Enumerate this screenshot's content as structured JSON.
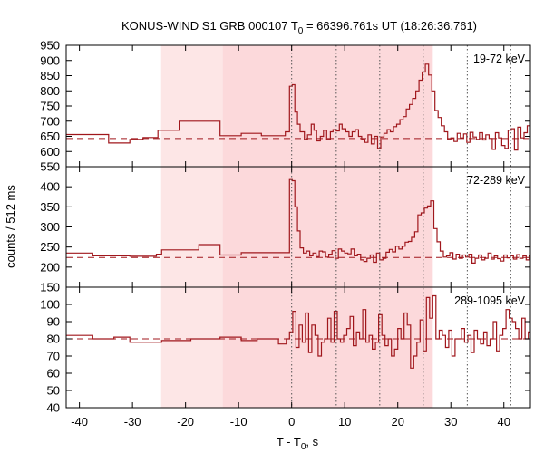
{
  "chart_data": {
    "type": "line",
    "title_prefix": "KONUS-WIND S1 GRB 000107 T",
    "title_sub": "0",
    "title_suffix": " = 66396.761s UT (18:26:36.761)",
    "ylabel": "counts / 512 ms",
    "xlabel_prefix": "T - T",
    "xlabel_sub": "0",
    "xlabel_suffix": ", s",
    "xlim": [
      -42.5,
      45
    ],
    "x_ticks": [
      "-40",
      "-30",
      "-20",
      "-10",
      "0",
      "10",
      "20",
      "30",
      "40"
    ],
    "x_tick_values": [
      -40,
      -30,
      -20,
      -10,
      0,
      10,
      20,
      30,
      40
    ],
    "shaded_regions": [
      {
        "from": -24.6,
        "to": -13,
        "color": "#fde6e6"
      },
      {
        "from": -13,
        "to": 26.6,
        "color": "#fcd9db"
      }
    ],
    "vertical_markers": [
      0,
      8.4,
      16.6,
      24.8,
      33.1,
      41.3
    ],
    "line_color": "#a0171c",
    "background_line_color": "#a0171c",
    "panels": [
      {
        "label": "19-72 keV",
        "ylim": [
          550,
          950
        ],
        "y_ticks": [
          "550",
          "600",
          "650",
          "700",
          "750",
          "800",
          "850",
          "900",
          "950"
        ],
        "y_tick_values": [
          550,
          600,
          650,
          700,
          750,
          800,
          850,
          900,
          950
        ],
        "background_level": 643,
        "steps": [
          [
            -42.5,
            656
          ],
          [
            -34.5,
            628
          ],
          [
            -30.5,
            640
          ],
          [
            -28,
            646
          ],
          [
            -25.2,
            670
          ],
          [
            -21.2,
            700
          ],
          [
            -13.5,
            652
          ],
          [
            -9.5,
            660
          ],
          [
            -5.7,
            652
          ],
          [
            -1.2,
            665
          ],
          [
            -0.4,
            815
          ],
          [
            0.1,
            820
          ],
          [
            0.6,
            730
          ],
          [
            1.1,
            690
          ],
          [
            1.6,
            665
          ],
          [
            2.4,
            640
          ],
          [
            3,
            655
          ],
          [
            3.7,
            690
          ],
          [
            4.2,
            670
          ],
          [
            4.7,
            635
          ],
          [
            5.4,
            650
          ],
          [
            6,
            670
          ],
          [
            6.6,
            640
          ],
          [
            7.3,
            665
          ],
          [
            7.8,
            672
          ],
          [
            8.4,
            668
          ],
          [
            9,
            690
          ],
          [
            9.5,
            675
          ],
          [
            10.2,
            665
          ],
          [
            10.8,
            650
          ],
          [
            11.4,
            665
          ],
          [
            12,
            672
          ],
          [
            12.6,
            650
          ],
          [
            13.2,
            640
          ],
          [
            13.8,
            630
          ],
          [
            14.4,
            655
          ],
          [
            15,
            625
          ],
          [
            15.6,
            650
          ],
          [
            16.2,
            610
          ],
          [
            16.8,
            648
          ],
          [
            17.4,
            660
          ],
          [
            18,
            672
          ],
          [
            18.6,
            665
          ],
          [
            19.2,
            682
          ],
          [
            19.8,
            690
          ],
          [
            20.4,
            705
          ],
          [
            21,
            715
          ],
          [
            21.6,
            740
          ],
          [
            22.2,
            755
          ],
          [
            22.8,
            775
          ],
          [
            23.4,
            800
          ],
          [
            24,
            835
          ],
          [
            24.6,
            862
          ],
          [
            25.2,
            888
          ],
          [
            25.8,
            852
          ],
          [
            26.4,
            800
          ],
          [
            27,
            735
          ],
          [
            27.6,
            712
          ],
          [
            28.2,
            685
          ],
          [
            28.8,
            665
          ],
          [
            29.4,
            640
          ],
          [
            30,
            645
          ],
          [
            30.6,
            633
          ],
          [
            31.2,
            660
          ],
          [
            31.8,
            645
          ],
          [
            32.4,
            658
          ],
          [
            33,
            630
          ],
          [
            33.6,
            663
          ],
          [
            34.2,
            648
          ],
          [
            34.8,
            640
          ],
          [
            35.4,
            662
          ],
          [
            36,
            638
          ],
          [
            36.6,
            655
          ],
          [
            37.2,
            643
          ],
          [
            37.8,
            607
          ],
          [
            38.4,
            662
          ],
          [
            39,
            645
          ],
          [
            39.6,
            620
          ],
          [
            40.2,
            610
          ],
          [
            40.8,
            670
          ],
          [
            41.4,
            675
          ],
          [
            42,
            605
          ],
          [
            42.6,
            680
          ],
          [
            43.2,
            645
          ],
          [
            43.8,
            662
          ],
          [
            44.4,
            685
          ],
          [
            45,
            685
          ]
        ]
      },
      {
        "label": "72-289 keV",
        "ylim": [
          150,
          450
        ],
        "y_ticks": [
          "150",
          "200",
          "250",
          "300",
          "350",
          "400"
        ],
        "y_tick_values": [
          150,
          200,
          250,
          300,
          350,
          400
        ],
        "background_level": 224,
        "steps": [
          [
            -42.5,
            235
          ],
          [
            -37.5,
            228
          ],
          [
            -30.5,
            227
          ],
          [
            -25.5,
            232
          ],
          [
            -24.5,
            243
          ],
          [
            -17.5,
            256
          ],
          [
            -13.5,
            230
          ],
          [
            -9.5,
            236
          ],
          [
            -1.5,
            236
          ],
          [
            -0.4,
            418
          ],
          [
            0.1,
            415
          ],
          [
            0.6,
            350
          ],
          [
            1.1,
            290
          ],
          [
            1.6,
            248
          ],
          [
            2.2,
            235
          ],
          [
            2.8,
            240
          ],
          [
            3.4,
            228
          ],
          [
            4,
            235
          ],
          [
            4.6,
            226
          ],
          [
            5.2,
            240
          ],
          [
            5.8,
            238
          ],
          [
            6.4,
            225
          ],
          [
            7,
            232
          ],
          [
            7.6,
            241
          ],
          [
            8.2,
            222
          ],
          [
            8.8,
            245
          ],
          [
            9.4,
            240
          ],
          [
            10,
            235
          ],
          [
            10.6,
            233
          ],
          [
            11.2,
            245
          ],
          [
            11.8,
            228
          ],
          [
            12.4,
            232
          ],
          [
            13,
            218
          ],
          [
            13.6,
            214
          ],
          [
            14.2,
            222
          ],
          [
            14.8,
            230
          ],
          [
            15.4,
            212
          ],
          [
            16,
            235
          ],
          [
            16.6,
            218
          ],
          [
            17.2,
            222
          ],
          [
            17.8,
            237
          ],
          [
            18.4,
            244
          ],
          [
            19,
            238
          ],
          [
            19.6,
            252
          ],
          [
            20.2,
            245
          ],
          [
            20.8,
            252
          ],
          [
            21.4,
            262
          ],
          [
            22,
            264
          ],
          [
            22.6,
            274
          ],
          [
            23.2,
            288
          ],
          [
            23.8,
            330
          ],
          [
            24.4,
            335
          ],
          [
            25,
            347
          ],
          [
            25.6,
            352
          ],
          [
            26.2,
            365
          ],
          [
            26.8,
            296
          ],
          [
            27.4,
            263
          ],
          [
            28,
            240
          ],
          [
            28.6,
            225
          ],
          [
            29.2,
            228
          ],
          [
            29.8,
            236
          ],
          [
            30.4,
            220
          ],
          [
            31,
            232
          ],
          [
            31.6,
            222
          ],
          [
            32.2,
            230
          ],
          [
            32.8,
            225
          ],
          [
            33.4,
            232
          ],
          [
            34,
            210
          ],
          [
            34.6,
            222
          ],
          [
            35.2,
            230
          ],
          [
            35.8,
            218
          ],
          [
            36.4,
            222
          ],
          [
            37,
            235
          ],
          [
            37.6,
            220
          ],
          [
            38.2,
            228
          ],
          [
            38.8,
            221
          ],
          [
            39.4,
            215
          ],
          [
            40,
            230
          ],
          [
            40.6,
            223
          ],
          [
            41.2,
            228
          ],
          [
            41.8,
            220
          ],
          [
            42.4,
            231
          ],
          [
            43,
            222
          ],
          [
            43.6,
            228
          ],
          [
            44.2,
            218
          ],
          [
            44.8,
            228
          ],
          [
            45,
            228
          ]
        ]
      },
      {
        "label": "289-1095 keV",
        "ylim": [
          40,
          110
        ],
        "y_ticks": [
          "40",
          "50",
          "60",
          "70",
          "80",
          "90",
          "100"
        ],
        "y_tick_values": [
          40,
          50,
          60,
          70,
          80,
          90,
          100
        ],
        "background_level": 80,
        "steps": [
          [
            -42.5,
            82
          ],
          [
            -37.5,
            80
          ],
          [
            -33.5,
            81
          ],
          [
            -30.5,
            78
          ],
          [
            -24.5,
            79
          ],
          [
            -19,
            80
          ],
          [
            -13.5,
            81
          ],
          [
            -9.5,
            79
          ],
          [
            -6.5,
            80
          ],
          [
            -2.5,
            77
          ],
          [
            -1,
            80
          ],
          [
            -0.4,
            84
          ],
          [
            0.2,
            96
          ],
          [
            0.8,
            75
          ],
          [
            1.4,
            88
          ],
          [
            2,
            78
          ],
          [
            2.6,
            95
          ],
          [
            3.2,
            72
          ],
          [
            3.8,
            88
          ],
          [
            4.4,
            82
          ],
          [
            5,
            70
          ],
          [
            5.6,
            78
          ],
          [
            6.2,
            80
          ],
          [
            6.8,
            92
          ],
          [
            7.4,
            78
          ],
          [
            8,
            96
          ],
          [
            8.6,
            80
          ],
          [
            9.2,
            78
          ],
          [
            9.8,
            82
          ],
          [
            10.4,
            86
          ],
          [
            11,
            93
          ],
          [
            11.6,
            76
          ],
          [
            12.2,
            84
          ],
          [
            12.8,
            80
          ],
          [
            13.4,
            97
          ],
          [
            14,
            78
          ],
          [
            14.6,
            82
          ],
          [
            15.2,
            74
          ],
          [
            15.8,
            78
          ],
          [
            16.4,
            94
          ],
          [
            17,
            82
          ],
          [
            17.6,
            76
          ],
          [
            18.2,
            80
          ],
          [
            18.8,
            70
          ],
          [
            19.4,
            74
          ],
          [
            20,
            86
          ],
          [
            20.6,
            80
          ],
          [
            21.2,
            95
          ],
          [
            21.8,
            88
          ],
          [
            22.4,
            63
          ],
          [
            23,
            70
          ],
          [
            23.6,
            78
          ],
          [
            24.2,
            91
          ],
          [
            24.8,
            73
          ],
          [
            25.4,
            104
          ],
          [
            26,
            92
          ],
          [
            26.6,
            105
          ],
          [
            27.2,
            80
          ],
          [
            27.8,
            85
          ],
          [
            28.4,
            82
          ],
          [
            29,
            75
          ],
          [
            29.6,
            85
          ],
          [
            30.2,
            70
          ],
          [
            30.8,
            80
          ],
          [
            31.4,
            80
          ],
          [
            32,
            86
          ],
          [
            32.6,
            78
          ],
          [
            33.2,
            82
          ],
          [
            33.8,
            72
          ],
          [
            34.4,
            85
          ],
          [
            35,
            80
          ],
          [
            35.6,
            77
          ],
          [
            36.2,
            84
          ],
          [
            36.8,
            76
          ],
          [
            37.4,
            80
          ],
          [
            38,
            90
          ],
          [
            38.6,
            73
          ],
          [
            39.2,
            82
          ],
          [
            39.8,
            86
          ],
          [
            40.4,
            97
          ],
          [
            41,
            92
          ],
          [
            41.6,
            90
          ],
          [
            42.2,
            86
          ],
          [
            42.8,
            80
          ],
          [
            43.4,
            92
          ],
          [
            44,
            80
          ],
          [
            44.6,
            84
          ],
          [
            45,
            84
          ]
        ]
      }
    ]
  }
}
